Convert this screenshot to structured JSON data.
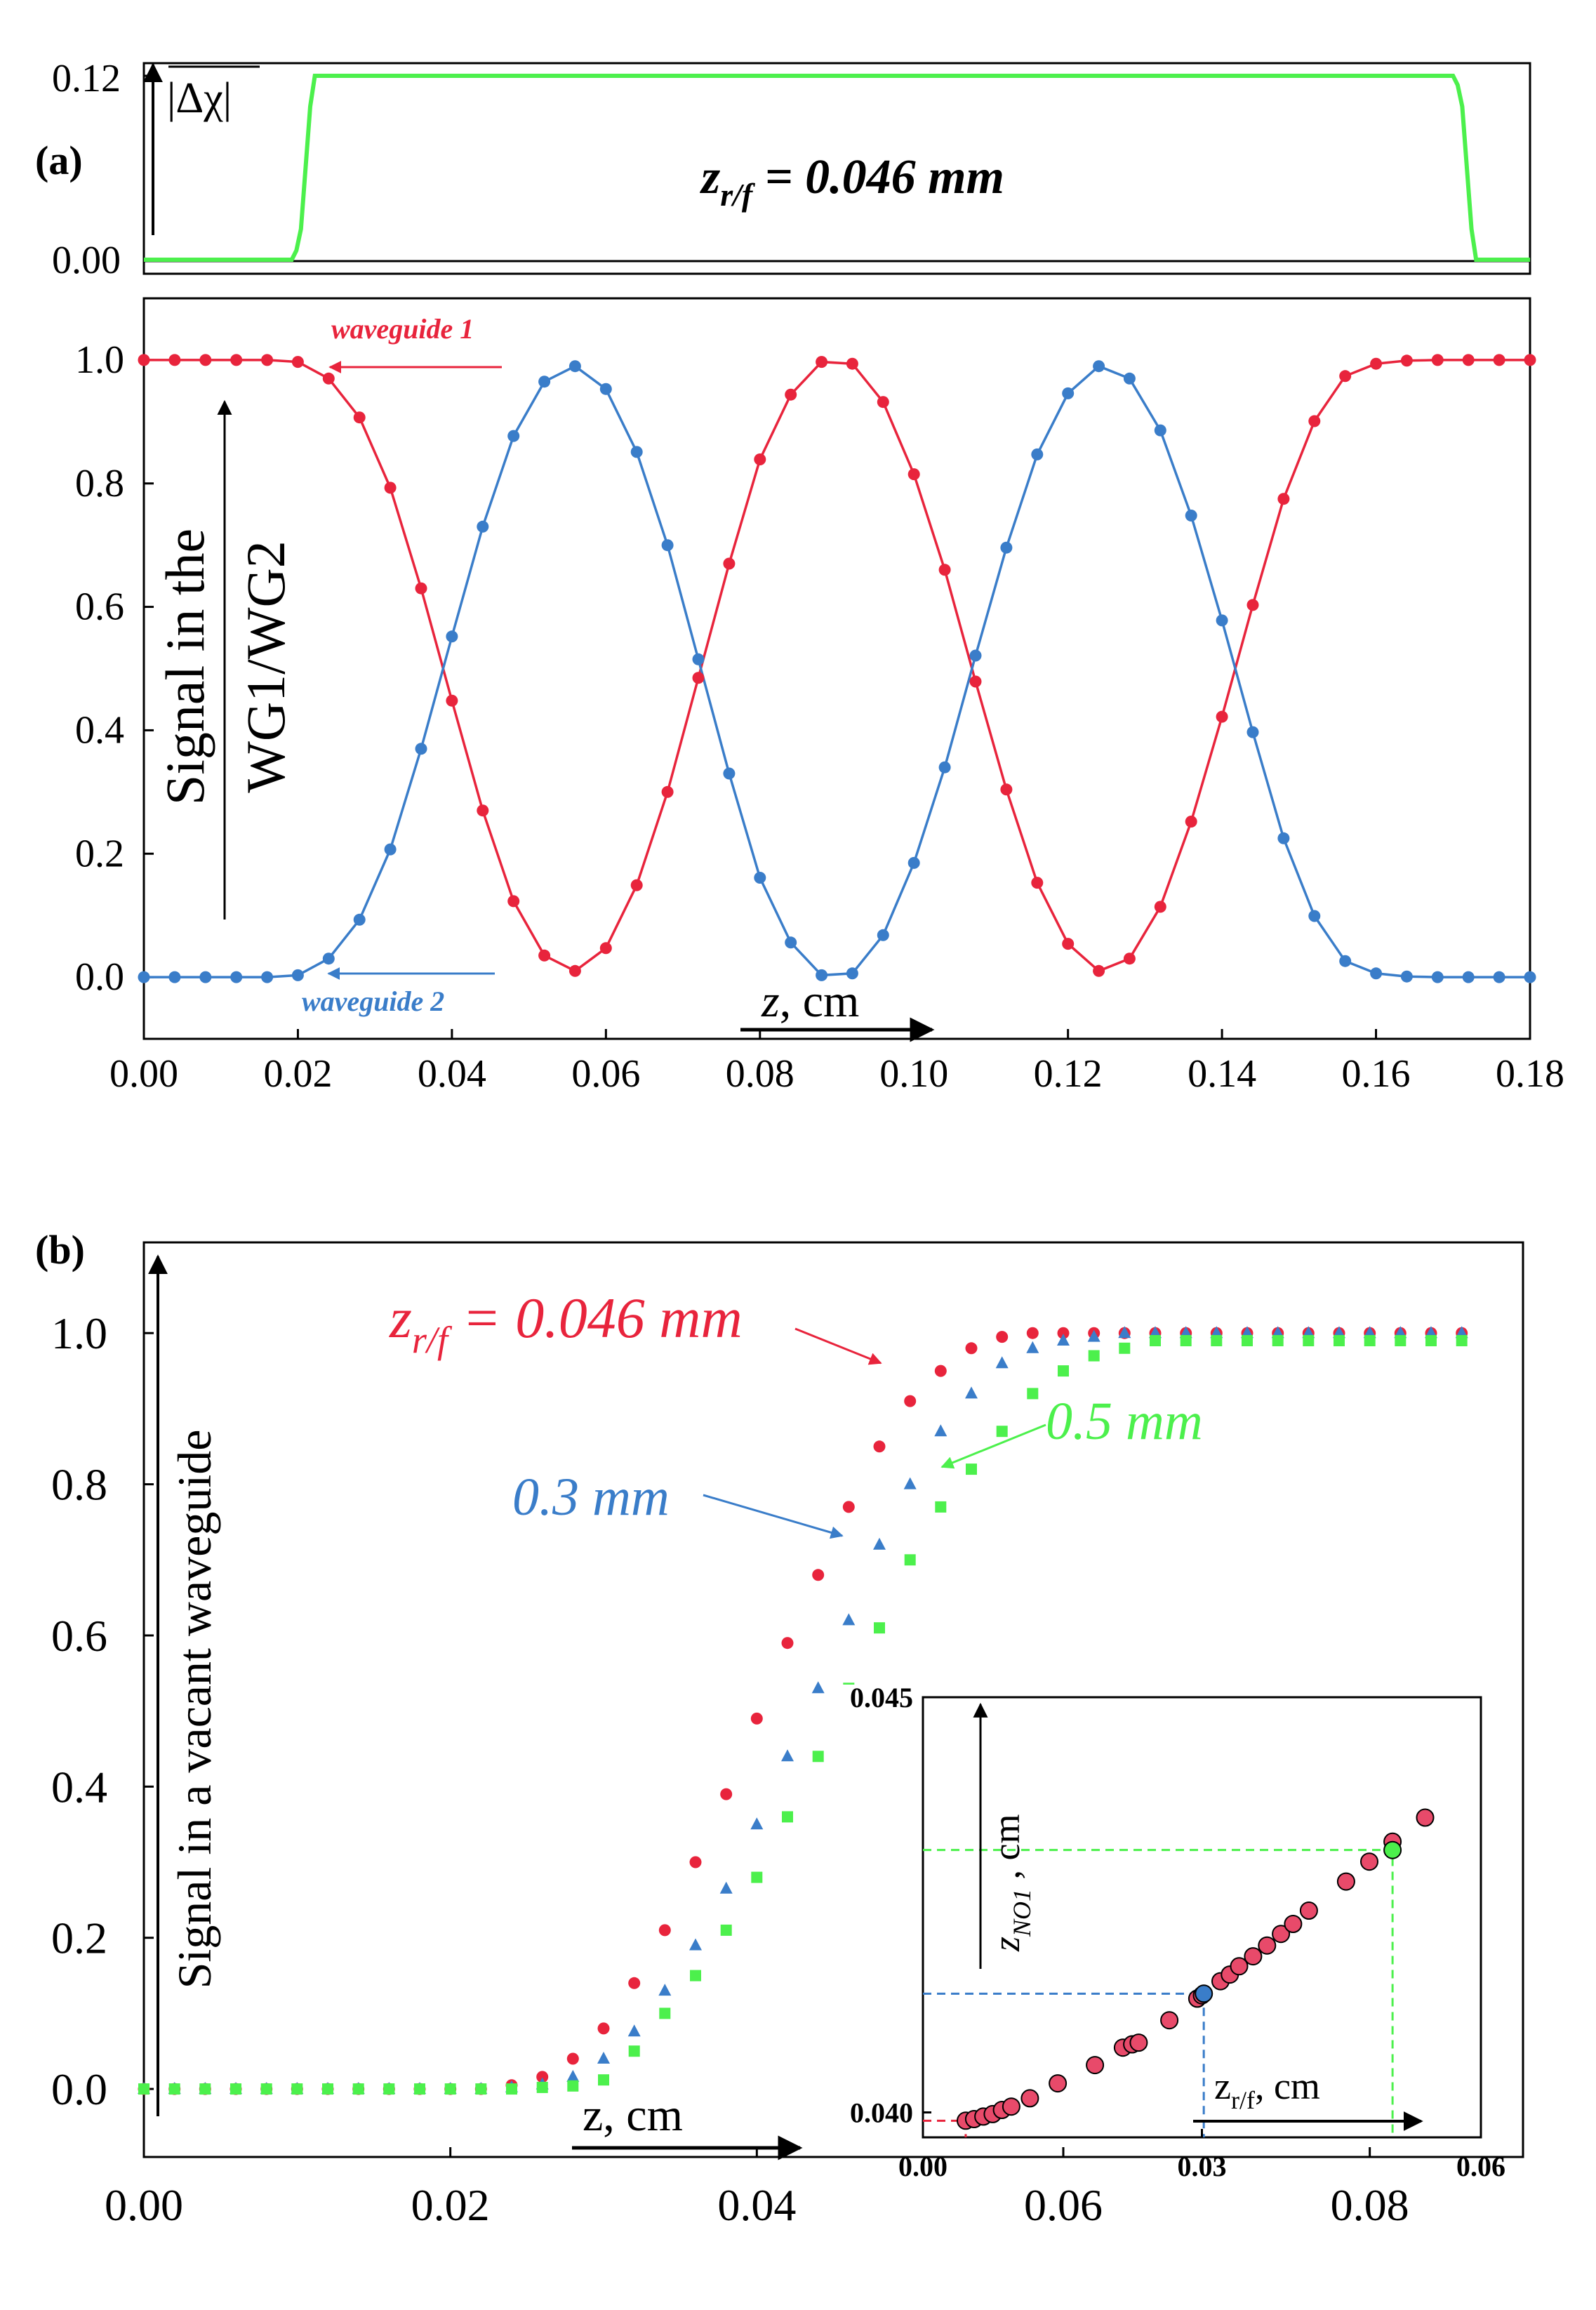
{
  "colors": {
    "red": "#e8243c",
    "blue": "#3a7dc9",
    "green": "#4cf04c",
    "pink": "#e84a6a",
    "black": "#000000"
  },
  "panel_a": {
    "label": "(a)",
    "top_ylabel": "|Δχ|",
    "annotation_prefix": "z",
    "annotation_sub": "r/f",
    "annotation_value": " = 0.046 mm",
    "ylabel_line1": "Signal in the",
    "ylabel_line2": "WG1/WG2",
    "xlabel_var": "z",
    "xlabel_unit": ", cm",
    "wg1_label": "waveguide 1",
    "wg2_label": "waveguide 2"
  },
  "panel_b": {
    "label": "(b)",
    "ylabel": "Signal in a vacant waveguide",
    "xlabel_var": "z",
    "xlabel_unit": ", cm",
    "label_red_prefix": "z",
    "label_red_sub": "r/f",
    "label_red_value": " = 0.046 mm",
    "label_blue": "0.3 mm",
    "label_green": "0.5 mm"
  },
  "inset": {
    "ylabel_var": "z",
    "ylabel_sub": "NO1",
    "ylabel_unit": " , cm",
    "xlabel_var": "z",
    "xlabel_sub": "r/f",
    "xlabel_unit": ", cm"
  },
  "chart_data": [
    {
      "id": "a_top",
      "type": "line",
      "title": "",
      "xlabel": "",
      "ylabel": "|Δχ|",
      "xlim": [
        0,
        0.18
      ],
      "ylim": [
        0,
        0.12
      ],
      "yticks": [
        "0.00",
        "0.12"
      ],
      "series": [
        {
          "name": "|Δχ|",
          "color": "#4cf04c",
          "x": [
            0,
            0.0192,
            0.0198,
            0.0204,
            0.021,
            0.0216,
            0.0222,
            0.17,
            0.1706,
            0.1712,
            0.1718,
            0.1724,
            0.173,
            0.18
          ],
          "y": [
            0,
            0,
            0.006,
            0.02,
            0.06,
            0.1,
            0.12,
            0.12,
            0.114,
            0.1,
            0.06,
            0.02,
            0,
            0
          ]
        }
      ]
    },
    {
      "id": "a_main",
      "type": "line",
      "title": "",
      "xlabel": "z, cm",
      "ylabel": "Signal in the WG1/WG2",
      "xlim": [
        0,
        0.18
      ],
      "ylim": [
        -0.1,
        1.1
      ],
      "xticks": [
        "0.00",
        "0.02",
        "0.04",
        "0.06",
        "0.08",
        "0.10",
        "0.12",
        "0.14",
        "0.16",
        "0.18"
      ],
      "yticks": [
        "0.0",
        "0.2",
        "0.4",
        "0.6",
        "0.8",
        "1.0"
      ],
      "series": [
        {
          "name": "waveguide 1",
          "color": "#e8243c",
          "x": [
            0.0,
            0.004,
            0.008,
            0.012,
            0.016,
            0.02,
            0.024,
            0.028,
            0.032,
            0.036,
            0.04,
            0.044,
            0.048,
            0.052,
            0.056,
            0.06,
            0.064,
            0.068,
            0.072,
            0.076,
            0.08,
            0.084,
            0.088,
            0.092,
            0.096,
            0.1,
            0.104,
            0.108,
            0.112,
            0.116,
            0.12,
            0.124,
            0.128,
            0.132,
            0.136,
            0.14,
            0.144,
            0.148,
            0.152,
            0.156,
            0.16,
            0.164,
            0.168,
            0.172,
            0.176,
            0.18
          ],
          "y": [
            1.0,
            1.0,
            1.0,
            1.0,
            1.0,
            0.997,
            0.97,
            0.907,
            0.793,
            0.63,
            0.448,
            0.27,
            0.123,
            0.035,
            0.01,
            0.047,
            0.149,
            0.3,
            0.485,
            0.67,
            0.839,
            0.944,
            0.997,
            0.994,
            0.932,
            0.815,
            0.66,
            0.479,
            0.304,
            0.153,
            0.054,
            0.01,
            0.03,
            0.114,
            0.252,
            0.422,
            0.603,
            0.775,
            0.901,
            0.974,
            0.994,
            0.999,
            1.0,
            1.0,
            1.0,
            1.0
          ]
        },
        {
          "name": "waveguide 2",
          "color": "#3a7dc9",
          "x": [
            0.0,
            0.004,
            0.008,
            0.012,
            0.016,
            0.02,
            0.024,
            0.028,
            0.032,
            0.036,
            0.04,
            0.044,
            0.048,
            0.052,
            0.056,
            0.06,
            0.064,
            0.068,
            0.072,
            0.076,
            0.08,
            0.084,
            0.088,
            0.092,
            0.096,
            0.1,
            0.104,
            0.108,
            0.112,
            0.116,
            0.12,
            0.124,
            0.128,
            0.132,
            0.136,
            0.14,
            0.144,
            0.148,
            0.152,
            0.156,
            0.16,
            0.164,
            0.168,
            0.172,
            0.176,
            0.18
          ],
          "y": [
            0.0,
            0.0,
            0.0,
            0.0,
            0.0,
            0.003,
            0.03,
            0.093,
            0.207,
            0.37,
            0.552,
            0.73,
            0.877,
            0.965,
            0.99,
            0.953,
            0.851,
            0.7,
            0.515,
            0.33,
            0.161,
            0.056,
            0.003,
            0.006,
            0.068,
            0.185,
            0.34,
            0.521,
            0.696,
            0.847,
            0.946,
            0.99,
            0.97,
            0.886,
            0.748,
            0.578,
            0.397,
            0.225,
            0.099,
            0.026,
            0.006,
            0.001,
            0.0,
            0.0,
            0.0,
            0.0
          ]
        }
      ]
    },
    {
      "id": "b_main",
      "type": "scatter",
      "title": "",
      "xlabel": "z, cm",
      "ylabel": "Signal in a vacant waveguide",
      "xlim": [
        0,
        0.09
      ],
      "ylim": [
        -0.09,
        1.12
      ],
      "xticks": [
        "0.00",
        "0.02",
        "0.04",
        "0.06",
        "0.08"
      ],
      "yticks": [
        "0.0",
        "0.2",
        "0.4",
        "0.6",
        "0.8",
        "1.0"
      ],
      "series": [
        {
          "name": "z_r/f = 0.046 mm",
          "color": "#e8243c",
          "marker": "circle",
          "x": [
            0.0,
            0.002,
            0.004,
            0.006,
            0.008,
            0.01,
            0.012,
            0.014,
            0.016,
            0.018,
            0.02,
            0.022,
            0.024,
            0.026,
            0.028,
            0.03,
            0.032,
            0.034,
            0.036,
            0.038,
            0.04,
            0.042,
            0.044,
            0.046,
            0.048,
            0.05,
            0.052,
            0.054,
            0.056,
            0.058,
            0.06,
            0.062,
            0.064,
            0.066,
            0.068,
            0.07,
            0.072,
            0.074,
            0.076,
            0.078,
            0.08,
            0.082,
            0.084,
            0.086
          ],
          "y": [
            0.0,
            0.0,
            0.0,
            0.0,
            0.0,
            0.0,
            0.0,
            0.0,
            0.0,
            0.0,
            0.0,
            0.0,
            0.005,
            0.016,
            0.04,
            0.08,
            0.14,
            0.21,
            0.3,
            0.39,
            0.49,
            0.59,
            0.68,
            0.77,
            0.85,
            0.91,
            0.95,
            0.98,
            0.995,
            1.0,
            1.0,
            1.0,
            1.0,
            1.0,
            1.0,
            1.0,
            1.0,
            1.0,
            1.0,
            1.0,
            1.0,
            1.0,
            1.0,
            1.0
          ]
        },
        {
          "name": "0.3 mm",
          "color": "#3a7dc9",
          "marker": "triangle",
          "x": [
            0.0,
            0.002,
            0.004,
            0.006,
            0.008,
            0.01,
            0.012,
            0.014,
            0.016,
            0.018,
            0.02,
            0.022,
            0.024,
            0.026,
            0.028,
            0.03,
            0.032,
            0.034,
            0.036,
            0.038,
            0.04,
            0.042,
            0.044,
            0.046,
            0.048,
            0.05,
            0.052,
            0.054,
            0.056,
            0.058,
            0.06,
            0.062,
            0.064,
            0.066,
            0.068,
            0.07,
            0.072,
            0.074,
            0.076,
            0.078,
            0.08,
            0.082,
            0.084,
            0.086
          ],
          "y": [
            0.0,
            0.0,
            0.0,
            0.0,
            0.0,
            0.0,
            0.0,
            0.0,
            0.0,
            0.0,
            0.0,
            0.0,
            0.002,
            0.006,
            0.016,
            0.04,
            0.076,
            0.13,
            0.19,
            0.265,
            0.35,
            0.44,
            0.53,
            0.62,
            0.72,
            0.8,
            0.87,
            0.92,
            0.96,
            0.98,
            0.99,
            0.995,
            1.0,
            1.0,
            1.0,
            1.0,
            1.0,
            1.0,
            1.0,
            1.0,
            1.0,
            1.0,
            1.0,
            1.0
          ]
        },
        {
          "name": "0.5 mm",
          "color": "#4cf04c",
          "marker": "square",
          "x": [
            0.0,
            0.002,
            0.004,
            0.006,
            0.008,
            0.01,
            0.012,
            0.014,
            0.016,
            0.018,
            0.02,
            0.022,
            0.024,
            0.026,
            0.028,
            0.03,
            0.032,
            0.034,
            0.036,
            0.038,
            0.04,
            0.042,
            0.044,
            0.046,
            0.048,
            0.05,
            0.052,
            0.054,
            0.056,
            0.058,
            0.06,
            0.062,
            0.064,
            0.066,
            0.068,
            0.07,
            0.072,
            0.074,
            0.076,
            0.078,
            0.08,
            0.082,
            0.084,
            0.086
          ],
          "y": [
            0.0,
            0.0,
            0.0,
            0.0,
            0.0,
            0.0,
            0.0,
            0.0,
            0.0,
            0.0,
            0.0,
            0.0,
            0.0,
            0.002,
            0.004,
            0.012,
            0.05,
            0.1,
            0.15,
            0.21,
            0.28,
            0.36,
            0.44,
            0.53,
            0.61,
            0.7,
            0.77,
            0.82,
            0.87,
            0.92,
            0.95,
            0.97,
            0.98,
            0.99,
            0.99,
            0.99,
            0.99,
            0.99,
            0.99,
            0.99,
            0.99,
            0.99,
            0.99,
            0.99
          ]
        }
      ]
    },
    {
      "id": "inset",
      "type": "scatter",
      "title": "",
      "xlabel": "z_r/f, cm",
      "ylabel": "z_NO1, cm",
      "xlim": [
        0,
        0.06
      ],
      "ylim": [
        0.0397,
        0.045
      ],
      "xticks": [
        "0.00",
        "0.03",
        "0.06"
      ],
      "yticks": [
        "0.040",
        "0.045"
      ],
      "series": [
        {
          "name": "z_NO1",
          "color": "#e84a6a",
          "marker": "circle",
          "x": [
            0.0046,
            0.0055,
            0.0065,
            0.0075,
            0.0085,
            0.0095,
            0.0115,
            0.0145,
            0.0185,
            0.0215,
            0.0225,
            0.0232,
            0.0265,
            0.0295,
            0.03,
            0.032,
            0.033,
            0.034,
            0.0355,
            0.037,
            0.0385,
            0.0398,
            0.0415,
            0.0455,
            0.048,
            0.0505,
            0.054
          ],
          "y": [
            0.0399,
            0.03992,
            0.03995,
            0.03998,
            0.04003,
            0.04007,
            0.04017,
            0.04035,
            0.04057,
            0.04078,
            0.04082,
            0.04084,
            0.04111,
            0.04137,
            0.04141,
            0.04158,
            0.04166,
            0.04176,
            0.04188,
            0.04201,
            0.04215,
            0.04227,
            0.04243,
            0.04278,
            0.04302,
            0.04326,
            0.04355
          ]
        },
        {
          "name": "0.3 mm",
          "color": "#3a7dc9",
          "marker": "circle",
          "x": [
            0.0302
          ],
          "y": [
            0.04143
          ]
        },
        {
          "name": "0.5 mm",
          "color": "#4cf04c",
          "marker": "circle",
          "x": [
            0.0505
          ],
          "y": [
            0.04316
          ]
        }
      ]
    }
  ]
}
